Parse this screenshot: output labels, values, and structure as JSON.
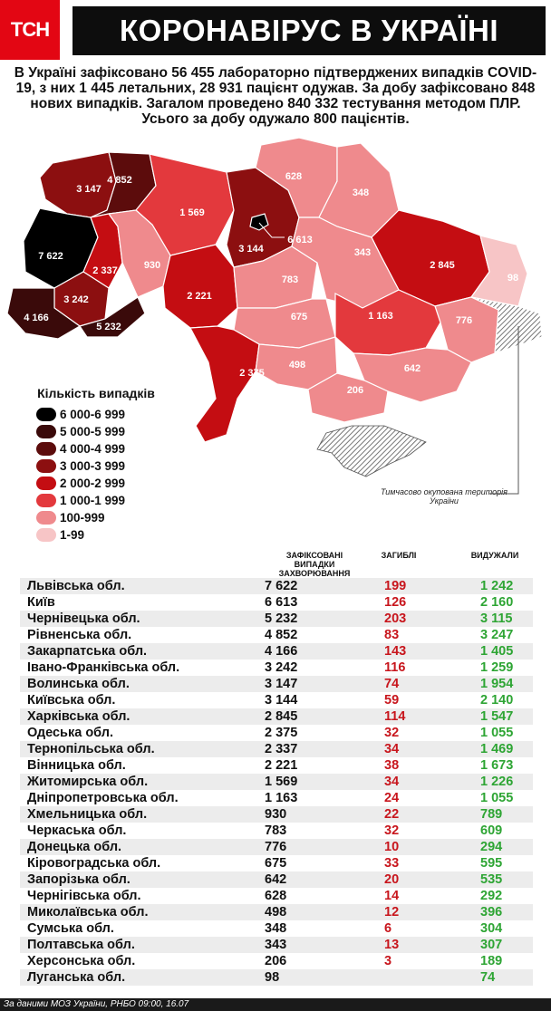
{
  "header": {
    "logo": "ТСН",
    "title": "КОРОНАВІРУС В УКРАЇНІ"
  },
  "summary": "В Україні зафіксовано 56 455 лабораторно підтверджених випадків COVID-19, з них 1 445 летальних, 28 931 пацієнт одужав. За добу зафіксовано 848 нових випадків. Загалом проведено 840 332 тестування методом ПЛР. Усього за добу одужало 800 пацієнтів.",
  "legend": {
    "title": "Кількість випадків",
    "items": [
      {
        "label": "6 000-6 999",
        "color": "#000000"
      },
      {
        "label": "5 000-5 999",
        "color": "#3a0a0a"
      },
      {
        "label": "4 000-4 999",
        "color": "#5c0c0c"
      },
      {
        "label": "3 000-3 999",
        "color": "#8c0f10"
      },
      {
        "label": "2 000-2 999",
        "color": "#c40d12"
      },
      {
        "label": "1 000-1 999",
        "color": "#e3393d"
      },
      {
        "label": "100-999",
        "color": "#ef8a8d"
      },
      {
        "label": "1-99",
        "color": "#f7c5c6"
      }
    ]
  },
  "map_labels": {
    "volyn": "3 147",
    "rivne": "4 852",
    "zhytomyr": "1 569",
    "kyiv_obl": "3 144",
    "kyiv_city": "6 613",
    "chernihiv": "628",
    "sumy": "348",
    "kharkiv": "2 845",
    "luhansk": "98",
    "lviv": "7 622",
    "ternopil": "2 337",
    "khmelnytskyi": "930",
    "vinnytsia": "2 221",
    "cherkasy": "783",
    "poltava": "343",
    "ivano_frankivsk": "3 242",
    "zakarpattia": "4 166",
    "chernivtsi": "5 232",
    "kirovohrad": "675",
    "dnipro": "1 163",
    "donetsk": "776",
    "odesa": "2 375",
    "mykolaiv": "498",
    "zaporizhzhia": "642",
    "kherson": "206"
  },
  "occupied_note": "Тимчасово окупована територія України",
  "table_headers": {
    "cases": "ЗАФІКСОВАНІ ВИПАДКИ ЗАХВОРЮВАННЯ",
    "deaths": "ЗАГИБЛІ",
    "recovered": "ВИДУЖАЛИ"
  },
  "rows": [
    {
      "region": "Львівська обл.",
      "cases": "7 622",
      "deaths": "199",
      "recovered": "1 242"
    },
    {
      "region": "Київ",
      "cases": "6 613",
      "deaths": "126",
      "recovered": "2 160"
    },
    {
      "region": "Чернівецька обл.",
      "cases": "5 232",
      "deaths": "203",
      "recovered": "3 115"
    },
    {
      "region": "Рівненська обл.",
      "cases": "4 852",
      "deaths": "83",
      "recovered": "3 247"
    },
    {
      "region": "Закарпатська обл.",
      "cases": "4 166",
      "deaths": "143",
      "recovered": "1 405"
    },
    {
      "region": "Івано-Франківська обл.",
      "cases": "3 242",
      "deaths": "116",
      "recovered": "1 259"
    },
    {
      "region": "Волинська обл.",
      "cases": "3 147",
      "deaths": "74",
      "recovered": "1 954"
    },
    {
      "region": "Київська обл.",
      "cases": "3 144",
      "deaths": "59",
      "recovered": "2 140"
    },
    {
      "region": "Харківська обл.",
      "cases": "2 845",
      "deaths": "114",
      "recovered": "1 547"
    },
    {
      "region": "Одеська обл.",
      "cases": "2 375",
      "deaths": "32",
      "recovered": "1 055"
    },
    {
      "region": "Тернопільська обл.",
      "cases": "2 337",
      "deaths": "34",
      "recovered": "1 469"
    },
    {
      "region": "Вінницька обл.",
      "cases": "2 221",
      "deaths": "38",
      "recovered": "1 673"
    },
    {
      "region": "Житомирська обл.",
      "cases": "1 569",
      "deaths": "34",
      "recovered": "1 226"
    },
    {
      "region": "Дніпропетровська обл.",
      "cases": "1 163",
      "deaths": "24",
      "recovered": "1 055"
    },
    {
      "region": "Хмельницька обл.",
      "cases": "930",
      "deaths": "22",
      "recovered": "789"
    },
    {
      "region": "Черкаська обл.",
      "cases": "783",
      "deaths": "32",
      "recovered": "609"
    },
    {
      "region": "Донецька обл.",
      "cases": "776",
      "deaths": "10",
      "recovered": "294"
    },
    {
      "region": "Кіровоградська обл.",
      "cases": "675",
      "deaths": "33",
      "recovered": "595"
    },
    {
      "region": "Запорізька обл.",
      "cases": "642",
      "deaths": "20",
      "recovered": "535"
    },
    {
      "region": "Чернігівська обл.",
      "cases": "628",
      "deaths": "14",
      "recovered": "292"
    },
    {
      "region": "Миколаївська обл.",
      "cases": "498",
      "deaths": "12",
      "recovered": "396"
    },
    {
      "region": "Сумська обл.",
      "cases": "348",
      "deaths": "6",
      "recovered": "304"
    },
    {
      "region": "Полтавська обл.",
      "cases": "343",
      "deaths": "13",
      "recovered": "307"
    },
    {
      "region": "Херсонська обл.",
      "cases": "206",
      "deaths": "3",
      "recovered": "189"
    },
    {
      "region": "Луганська обл.",
      "cases": "98",
      "deaths": "",
      "recovered": "74"
    }
  ],
  "footer": "За даними МОЗ України, РНБО 09:00, 16.07"
}
